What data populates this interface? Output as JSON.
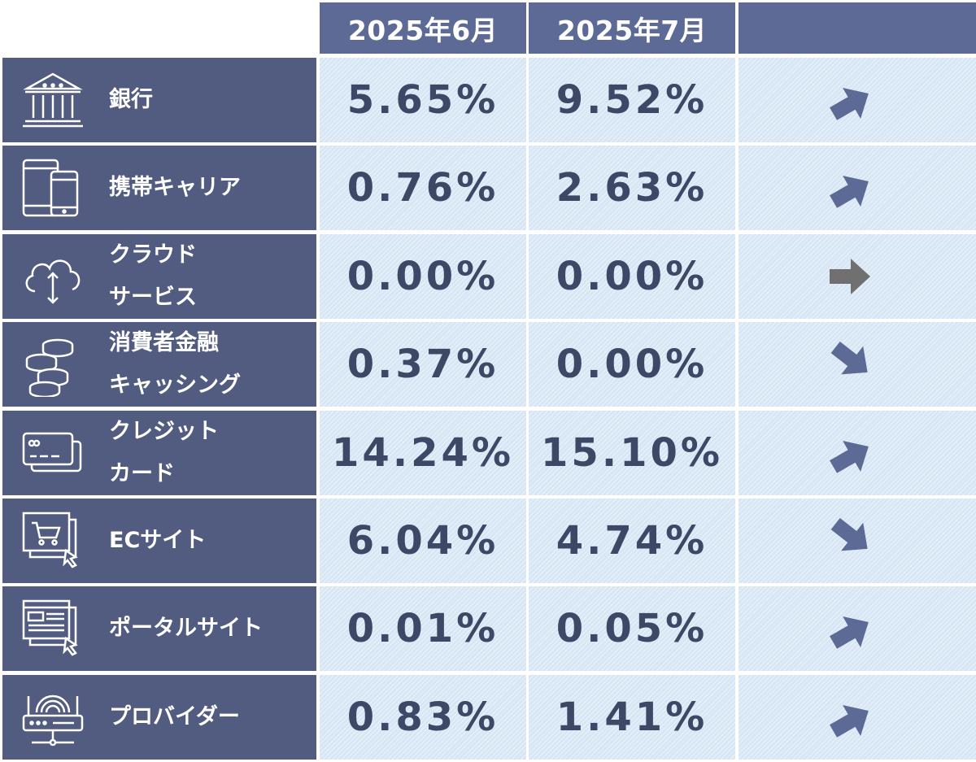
{
  "header": {
    "col1": "2025年6月",
    "col2": "2025年7月",
    "col3": ""
  },
  "colors": {
    "header_bg": "#5e6a96",
    "label_bg": "#525c80",
    "cell_bg": "#d6e6f4",
    "value_text": "#3d4866",
    "arrow_up_down": "#5e6a96",
    "arrow_flat": "#707070"
  },
  "rows": [
    {
      "label_lines": [
        "銀行"
      ],
      "icon": "bank-icon",
      "june": "5.65%",
      "july": "9.52%",
      "trend": "up"
    },
    {
      "label_lines": [
        "携帯キャリア"
      ],
      "icon": "smartphone-tablet-icon",
      "june": "0.76%",
      "july": "2.63%",
      "trend": "up"
    },
    {
      "label_lines": [
        "クラウド",
        "サービス"
      ],
      "icon": "cloud-icon",
      "june": "0.00%",
      "july": "0.00%",
      "trend": "flat"
    },
    {
      "label_lines": [
        "消費者金融",
        "キャッシング"
      ],
      "icon": "coins-icon",
      "june": "0.37%",
      "july": "0.00%",
      "trend": "down"
    },
    {
      "label_lines": [
        "クレジット",
        "カード"
      ],
      "icon": "credit-card-icon",
      "june": "14.24%",
      "july": "15.10%",
      "trend": "up"
    },
    {
      "label_lines": [
        "ECサイト"
      ],
      "icon": "shopping-cart-screen-icon",
      "june": "6.04%",
      "july": "4.74%",
      "trend": "down"
    },
    {
      "label_lines": [
        "ポータルサイト"
      ],
      "icon": "web-portal-icon",
      "june": "0.01%",
      "july": "0.05%",
      "trend": "up"
    },
    {
      "label_lines": [
        "プロバイダー"
      ],
      "icon": "router-icon",
      "june": "0.83%",
      "july": "1.41%",
      "trend": "up"
    }
  ]
}
